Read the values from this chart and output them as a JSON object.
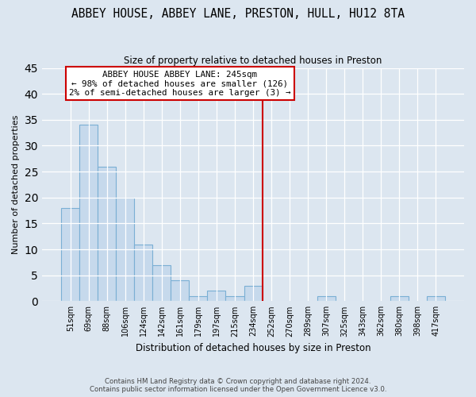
{
  "title": "ABBEY HOUSE, ABBEY LANE, PRESTON, HULL, HU12 8TA",
  "subtitle": "Size of property relative to detached houses in Preston",
  "xlabel": "Distribution of detached houses by size in Preston",
  "ylabel": "Number of detached properties",
  "categories": [
    "51sqm",
    "69sqm",
    "88sqm",
    "106sqm",
    "124sqm",
    "142sqm",
    "161sqm",
    "179sqm",
    "197sqm",
    "215sqm",
    "234sqm",
    "252sqm",
    "270sqm",
    "289sqm",
    "307sqm",
    "325sqm",
    "343sqm",
    "362sqm",
    "380sqm",
    "398sqm",
    "417sqm"
  ],
  "values": [
    18,
    34,
    26,
    20,
    11,
    7,
    4,
    1,
    2,
    1,
    3,
    0,
    0,
    0,
    1,
    0,
    0,
    0,
    1,
    0,
    1
  ],
  "bar_color": "#c6d9ec",
  "bar_edge_color": "#7aafd4",
  "vline_x": 10.5,
  "vline_color": "#cc0000",
  "annotation_title": "ABBEY HOUSE ABBEY LANE: 245sqm",
  "annotation_line1": "← 98% of detached houses are smaller (126)",
  "annotation_line2": "2% of semi-detached houses are larger (3) →",
  "annotation_box_color": "#ffffff",
  "annotation_box_edge": "#cc0000",
  "ylim": [
    0,
    45
  ],
  "yticks": [
    0,
    5,
    10,
    15,
    20,
    25,
    30,
    35,
    40,
    45
  ],
  "footer1": "Contains HM Land Registry data © Crown copyright and database right 2024.",
  "footer2": "Contains public sector information licensed under the Open Government Licence v3.0.",
  "background_color": "#dce6f0"
}
